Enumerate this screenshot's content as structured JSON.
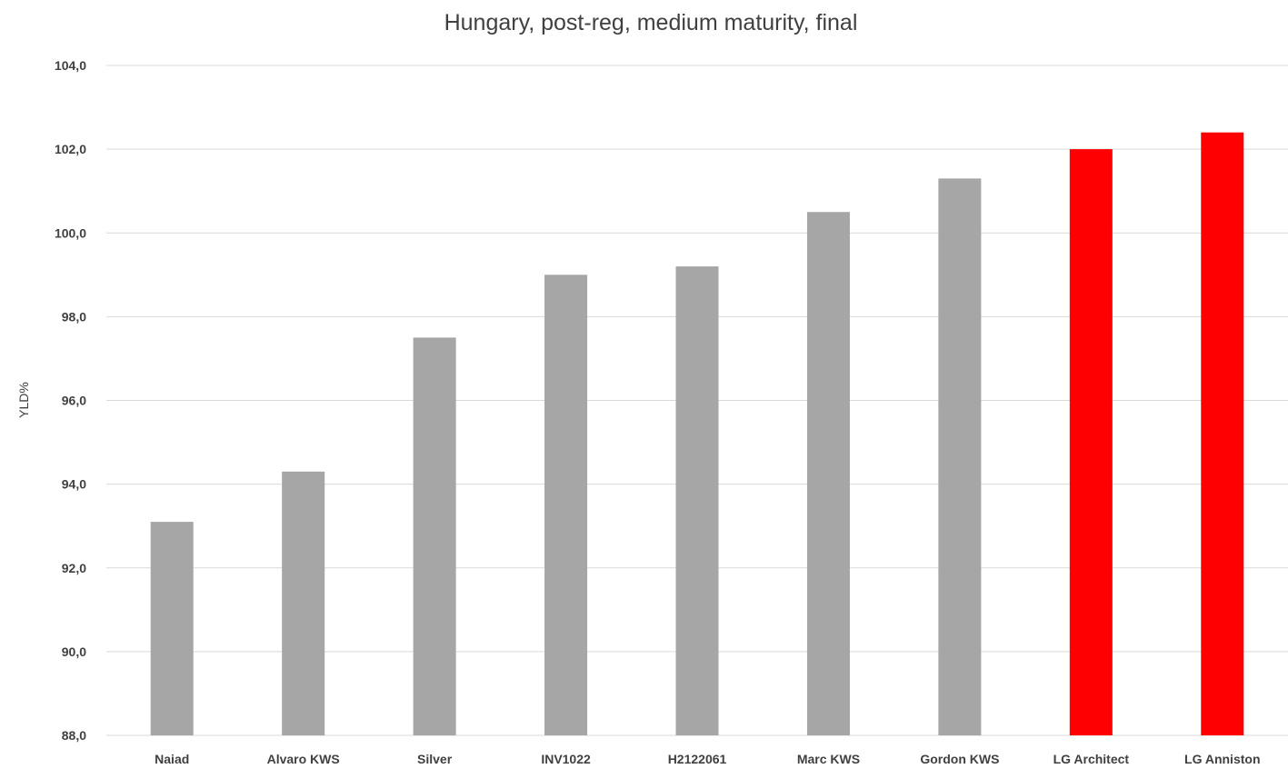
{
  "chart_data": {
    "type": "bar",
    "title": "Hungary, post-reg, medium maturity, final",
    "ylabel": "YLD%",
    "xlabel": "",
    "categories": [
      "Naiad",
      "Alvaro KWS",
      "Silver",
      "INV1022",
      "H2122061",
      "Marc KWS",
      "Gordon KWS",
      "LG Architect",
      "LG Anniston"
    ],
    "values": [
      93.1,
      94.3,
      97.5,
      99.0,
      99.2,
      100.5,
      101.3,
      102.0,
      102.4
    ],
    "bar_colors": [
      "#a6a6a6",
      "#a6a6a6",
      "#a6a6a6",
      "#a6a6a6",
      "#a6a6a6",
      "#a6a6a6",
      "#a6a6a6",
      "#ff0000",
      "#ff0000"
    ],
    "ylim": [
      88,
      104
    ],
    "yticks": [
      "88,0",
      "90,0",
      "92,0",
      "94,0",
      "96,0",
      "98,0",
      "100,0",
      "102,0",
      "104,0"
    ],
    "grid": true,
    "legend": "none"
  }
}
